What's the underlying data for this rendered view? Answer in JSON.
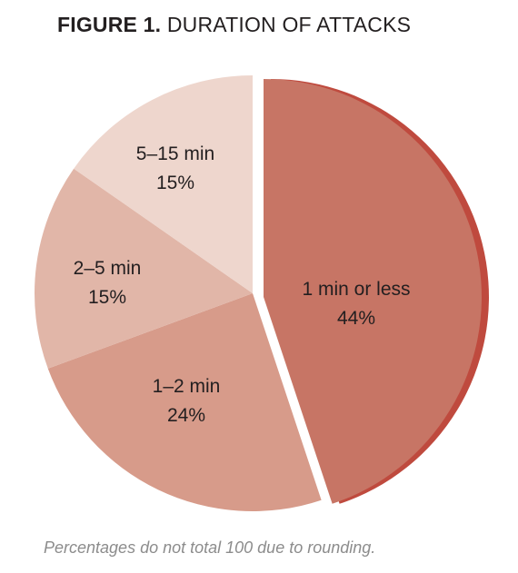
{
  "figure": {
    "number_label": "FIGURE 1.",
    "title": "DURATION OF ATTACKS",
    "note": "Percentages do not total 100 due to rounding."
  },
  "chart_data": {
    "type": "pie",
    "title": "DURATION OF ATTACKS",
    "start_angle_deg": 0,
    "direction": "clockwise",
    "slices": [
      {
        "label": "1 min or less",
        "value": 44,
        "value_label": "44%",
        "color": "#c77565",
        "exploded": true
      },
      {
        "label": "1–2 min",
        "value": 24,
        "value_label": "24%",
        "color": "#d79b8a"
      },
      {
        "label": "2–5 min",
        "value": 15,
        "value_label": "15%",
        "color": "#e1b6a8"
      },
      {
        "label": "5–15 min",
        "value": 15,
        "value_label": "15%",
        "color": "#eed6cd"
      }
    ],
    "shadow_color": "#bf4a3e",
    "note": "Percentages do not total 100 due to rounding."
  }
}
